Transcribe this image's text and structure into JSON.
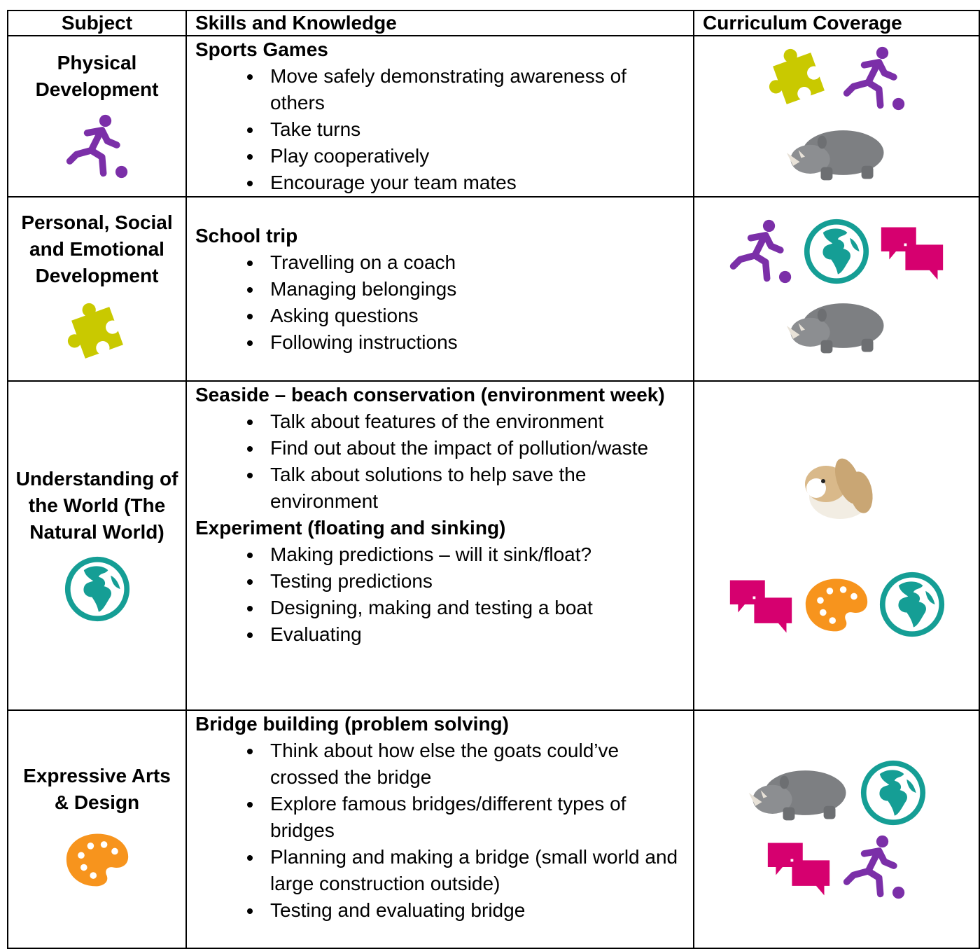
{
  "table": {
    "header": [
      "Subject",
      "Skills and Knowledge",
      "Curriculum Coverage"
    ],
    "rows": [
      {
        "subject": "Physical Development",
        "sections": [
          {
            "heading": "Sports Games",
            "items": [
              "Move safely demonstrating awareness of others",
              "Take turns",
              "Play cooperatively",
              "Encourage your team mates"
            ]
          }
        ]
      },
      {
        "subject": "Personal, Social and Emotional Development",
        "sections": [
          {
            "heading": "School trip",
            "items": [
              "Travelling on a coach",
              "Managing belongings",
              "Asking questions",
              "Following instructions"
            ]
          }
        ]
      },
      {
        "subject": "Understanding of the World (The Natural World)",
        "sections": [
          {
            "heading": "Seaside – beach conservation (environment week)",
            "items": [
              "Talk about features of the environment",
              "Find out about the impact of pollution/waste",
              "Talk about solutions to help save the environment"
            ]
          },
          {
            "heading": "Experiment (floating and sinking)",
            "items": [
              "Making predictions – will it sink/float?",
              "Testing predictions",
              "Designing, making and testing a boat",
              "Evaluating"
            ]
          }
        ]
      },
      {
        "subject": "Expressive Arts & Design",
        "sections": [
          {
            "heading": "Bridge building (problem solving)",
            "items": [
              "Think about how else the goats could’ve crossed the bridge",
              "Explore famous bridges/different types of bridges",
              "Planning and making a bridge (small world and large construction outside)",
              "Testing and evaluating bridge"
            ]
          }
        ]
      }
    ]
  }
}
